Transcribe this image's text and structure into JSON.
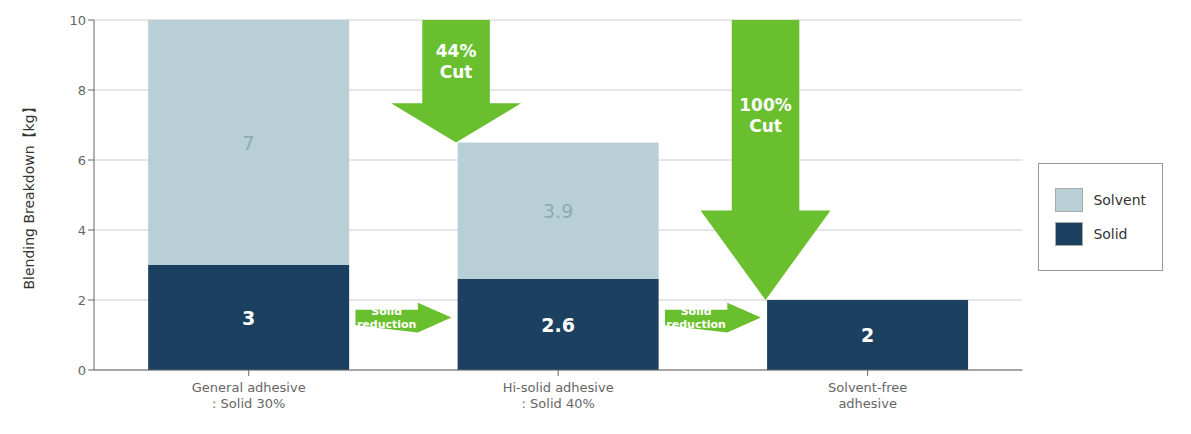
{
  "chart_data": {
    "type": "bar",
    "stacked": true,
    "categories": [
      "General adhesive\n: Solid 30%",
      "Hi-solid adhesive\n: Solid 40%",
      "Solvent-free\nadhesive"
    ],
    "series": [
      {
        "name": "Solid",
        "color": "#1b4060",
        "values": [
          3,
          2.6,
          2
        ]
      },
      {
        "name": "Solvent",
        "color": "#b8cfd6",
        "values": [
          7,
          3.9,
          0
        ]
      }
    ],
    "y_label": "Blending Breakdown【kg】",
    "ylim": [
      0,
      10
    ],
    "yticks": [
      0,
      2,
      4,
      6,
      8,
      10
    ],
    "grid": true,
    "legend": "right",
    "data_labels": true,
    "annotations": [
      "44%\nCut",
      "100%\nCut",
      "Solid\nreduction",
      "Solid\nreduction"
    ],
    "annotation_color": "#6abf2e"
  }
}
